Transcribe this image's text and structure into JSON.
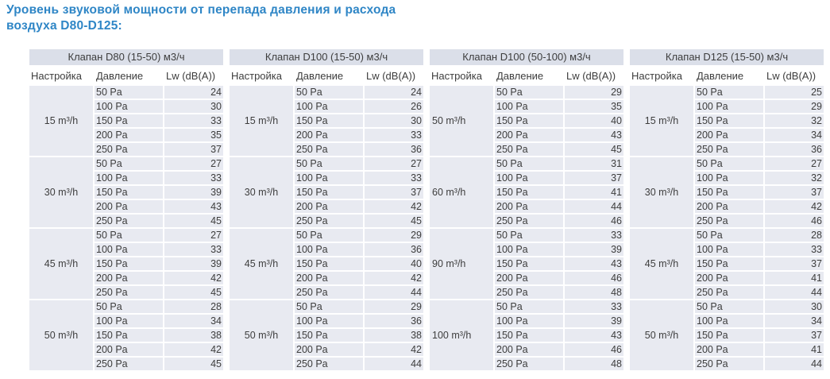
{
  "page": {
    "title_line1": "Уровень звуковой мощности от перепада давления и расхода",
    "title_line2": "воздуха D80-D125:"
  },
  "colors": {
    "accent": "#2f86c6",
    "table_title_bg": "#dbdfe9",
    "row_bg": "#e8eaf1",
    "header_bg": "#ffffff",
    "text": "#3d3d3d",
    "separator": "#ffffff"
  },
  "chart_data": {
    "type": "table",
    "title": "Уровень звуковой мощности от перепада давления и расхода воздуха D80-D125:",
    "tables": [
      {
        "title": "Клапан D80 (15-50) м3/ч",
        "columns": [
          "Настройка",
          "Давление",
          "Lw (dB(A))"
        ],
        "setting_align": "center",
        "groups": [
          {
            "setting": "15 m³/h",
            "rows": [
              [
                "50 Pa",
                24
              ],
              [
                "100 Pa",
                30
              ],
              [
                "150 Pa",
                33
              ],
              [
                "200 Pa",
                35
              ],
              [
                "250 Pa",
                37
              ]
            ]
          },
          {
            "setting": "30 m³/h",
            "rows": [
              [
                "50 Pa",
                27
              ],
              [
                "100 Pa",
                33
              ],
              [
                "150 Pa",
                39
              ],
              [
                "200 Pa",
                43
              ],
              [
                "250 Pa",
                45
              ]
            ]
          },
          {
            "setting": "45 m³/h",
            "rows": [
              [
                "50 Pa",
                27
              ],
              [
                "100 Pa",
                33
              ],
              [
                "150 Pa",
                39
              ],
              [
                "200 Pa",
                42
              ],
              [
                "250 Pa",
                45
              ]
            ]
          },
          {
            "setting": "50 m³/h",
            "rows": [
              [
                "50 Pa",
                28
              ],
              [
                "100 Pa",
                34
              ],
              [
                "150 Pa",
                38
              ],
              [
                "200 Pa",
                42
              ],
              [
                "250 Pa",
                45
              ]
            ]
          }
        ]
      },
      {
        "title": "Клапан D100 (15-50) м3/ч",
        "columns": [
          "Настройка",
          "Давление",
          "Lw (dB(A))"
        ],
        "setting_align": "center",
        "groups": [
          {
            "setting": "15 m³/h",
            "rows": [
              [
                "50 Pa",
                24
              ],
              [
                "100 Pa",
                26
              ],
              [
                "150 Pa",
                30
              ],
              [
                "200 Pa",
                33
              ],
              [
                "250 Pa",
                36
              ]
            ]
          },
          {
            "setting": "30 m³/h",
            "rows": [
              [
                "50 Pa",
                27
              ],
              [
                "100 Pa",
                33
              ],
              [
                "150 Pa",
                37
              ],
              [
                "200 Pa",
                42
              ],
              [
                "250 Pa",
                45
              ]
            ]
          },
          {
            "setting": "45 m³/h",
            "rows": [
              [
                "50 Pa",
                29
              ],
              [
                "100 Pa",
                36
              ],
              [
                "150 Pa",
                40
              ],
              [
                "200 Pa",
                42
              ],
              [
                "250 Pa",
                44
              ]
            ]
          },
          {
            "setting": "50 m³/h",
            "rows": [
              [
                "50 Pa",
                29
              ],
              [
                "100 Pa",
                36
              ],
              [
                "150 Pa",
                38
              ],
              [
                "200 Pa",
                42
              ],
              [
                "250 Pa",
                44
              ]
            ]
          }
        ]
      },
      {
        "title": "Клапан D100 (50-100) м3/ч",
        "columns": [
          "Настройка",
          "Давление",
          "Lw (dB(A))"
        ],
        "setting_align": "left",
        "groups": [
          {
            "setting": "50 m³/h",
            "rows": [
              [
                "50 Pa",
                29
              ],
              [
                "100 Pa",
                35
              ],
              [
                "150 Pa",
                40
              ],
              [
                "200 Pa",
                43
              ],
              [
                "250 Pa",
                45
              ]
            ]
          },
          {
            "setting": "60 m³/h",
            "rows": [
              [
                "50 Pa",
                31
              ],
              [
                "100 Pa",
                37
              ],
              [
                "150 Pa",
                41
              ],
              [
                "200 Pa",
                44
              ],
              [
                "250 Pa",
                46
              ]
            ]
          },
          {
            "setting": "90 m³/h",
            "rows": [
              [
                "50 Pa",
                33
              ],
              [
                "100 Pa",
                39
              ],
              [
                "150 Pa",
                43
              ],
              [
                "200 Pa",
                46
              ],
              [
                "250 Pa",
                48
              ]
            ]
          },
          {
            "setting": "100 m³/h",
            "rows": [
              [
                "50 Pa",
                33
              ],
              [
                "100 Pa",
                39
              ],
              [
                "150 Pa",
                43
              ],
              [
                "200 Pa",
                46
              ],
              [
                "250 Pa",
                48
              ]
            ]
          }
        ]
      },
      {
        "title": "Клапан D125 (15-50) м3/ч",
        "columns": [
          "Настройка",
          "Давление",
          "Lw (dB(A))"
        ],
        "setting_align": "center",
        "groups": [
          {
            "setting": "15 m³/h",
            "rows": [
              [
                "50 Pa",
                25
              ],
              [
                "100 Pa",
                29
              ],
              [
                "150 Pa",
                32
              ],
              [
                "200 Pa",
                34
              ],
              [
                "250 Pa",
                36
              ]
            ]
          },
          {
            "setting": "30 m³/h",
            "rows": [
              [
                "50 Pa",
                27
              ],
              [
                "100 Pa",
                32
              ],
              [
                "150 Pa",
                37
              ],
              [
                "200 Pa",
                42
              ],
              [
                "250 Pa",
                46
              ]
            ]
          },
          {
            "setting": "45 m³/h",
            "rows": [
              [
                "50 Pa",
                28
              ],
              [
                "100 Pa",
                33
              ],
              [
                "150 Pa",
                37
              ],
              [
                "200 Pa",
                41
              ],
              [
                "250 Pa",
                44
              ]
            ]
          },
          {
            "setting": "50 m³/h",
            "rows": [
              [
                "50 Pa",
                30
              ],
              [
                "100 Pa",
                34
              ],
              [
                "150 Pa",
                37
              ],
              [
                "200 Pa",
                41
              ],
              [
                "250 Pa",
                44
              ]
            ]
          }
        ]
      }
    ]
  }
}
